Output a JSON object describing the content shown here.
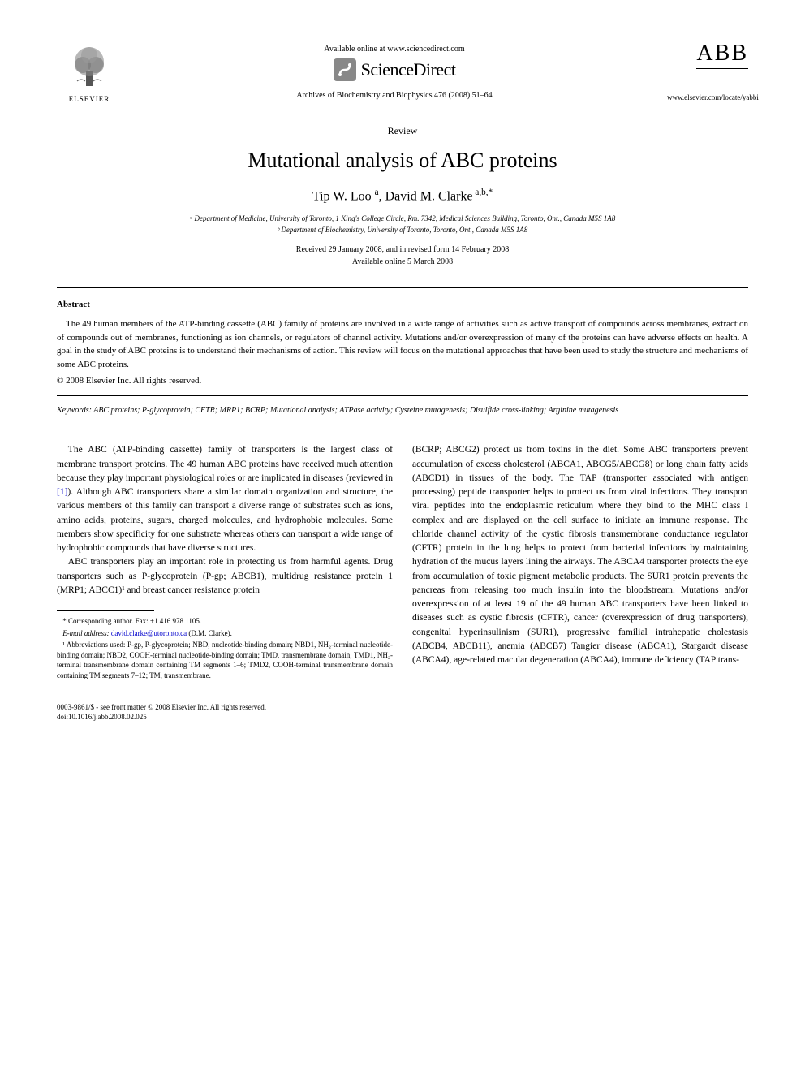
{
  "header": {
    "publisher": "ELSEVIER",
    "available_online": "Available online at www.sciencedirect.com",
    "sciencedirect": "ScienceDirect",
    "journal_ref": "Archives of Biochemistry and Biophysics 476 (2008) 51–64",
    "journal_logo": "ABB",
    "journal_url": "www.elsevier.com/locate/yabbi"
  },
  "article": {
    "type": "Review",
    "title": "Mutational analysis of ABC proteins",
    "authors_html": "Tip W. Loo <sup>a</sup>, David M. Clarke<sup> a,b,*</sup>",
    "affiliation_a": "ᵃ Department of Medicine, University of Toronto, 1 King's College Circle, Rm. 7342, Medical Sciences Building, Toronto, Ont., Canada M5S 1A8",
    "affiliation_b": "ᵇ Department of Biochemistry, University of Toronto, Toronto, Ont., Canada M5S 1A8",
    "received": "Received 29 January 2008, and in revised form 14 February 2008",
    "available": "Available online 5 March 2008"
  },
  "abstract": {
    "heading": "Abstract",
    "text": "The 49 human members of the ATP-binding cassette (ABC) family of proteins are involved in a wide range of activities such as active transport of compounds across membranes, extraction of compounds out of membranes, functioning as ion channels, or regulators of channel activity. Mutations and/or overexpression of many of the proteins can have adverse effects on health. A goal in the study of ABC proteins is to understand their mechanisms of action. This review will focus on the mutational approaches that have been used to study the structure and mechanisms of some ABC proteins.",
    "copyright": "© 2008 Elsevier Inc. All rights reserved."
  },
  "keywords": {
    "label": "Keywords:",
    "text": " ABC proteins; P-glycoprotein; CFTR; MRP1; BCRP; Mutational analysis; ATPase activity; Cysteine mutagenesis; Disulfide cross-linking; Arginine mutagenesis"
  },
  "body": {
    "col1_p1": "The ABC (ATP-binding cassette) family of transporters is the largest class of membrane transport proteins. The 49 human ABC proteins have received much attention because they play important physiological roles or are implicated in diseases (reviewed in [1]). Although ABC transporters share a similar domain organization and structure, the various members of this family can transport a diverse range of substrates such as ions, amino acids, proteins, sugars, charged molecules, and hydrophobic molecules. Some members show specificity for one substrate whereas others can transport a wide range of hydrophobic compounds that have diverse structures.",
    "col1_p2": "ABC transporters play an important role in protecting us from harmful agents. Drug transporters such as P-glycoprotein (P-gp; ABCB1), multidrug resistance protein 1 (MRP1; ABCC1)¹ and breast cancer resistance protein",
    "col2_p1": "(BCRP; ABCG2) protect us from toxins in the diet. Some ABC transporters prevent accumulation of excess cholesterol (ABCA1, ABCG5/ABCG8) or long chain fatty acids (ABCD1) in tissues of the body. The TAP (transporter associated with antigen processing) peptide transporter helps to protect us from viral infections. They transport viral peptides into the endoplasmic reticulum where they bind to the MHC class I complex and are displayed on the cell surface to initiate an immune response. The chloride channel activity of the cystic fibrosis transmembrane conductance regulator (CFTR) protein in the lung helps to protect from bacterial infections by maintaining hydration of the mucus layers lining the airways. The ABCA4 transporter protects the eye from accumulation of toxic pigment metabolic products. The SUR1 protein prevents the pancreas from releasing too much insulin into the bloodstream. Mutations and/or overexpression of at least 19 of the 49 human ABC transporters have been linked to diseases such as cystic fibrosis (CFTR), cancer (overexpression of drug transporters), congenital hyperinsulinism (SUR1), progressive familial intrahepatic cholestasis (ABCB4, ABCB11), anemia (ABCB7) Tangier disease (ABCA1), Stargardt disease (ABCA4), age-related macular degeneration (ABCA4), immune deficiency (TAP trans-"
  },
  "footnotes": {
    "corresponding": "* Corresponding author. Fax: +1 416 978 1105.",
    "email_label": "E-mail address:",
    "email": "david.clarke@utoronto.ca",
    "email_attrib": "(D.M. Clarke).",
    "abbrev": "¹ Abbreviations used: P-gp, P-glycoprotein; NBD, nucleotide-binding domain; NBD1, NH₂-terminal nucleotide-binding domain; NBD2, COOH-terminal nucleotide-binding domain; TMD, transmembrane domain; TMD1, NH₂-terminal transmembrane domain containing TM segments 1–6; TMD2, COOH-terminal transmembrane domain containing TM segments 7–12; TM, transmembrane."
  },
  "footer": {
    "issn": "0003-9861/$ - see front matter © 2008 Elsevier Inc. All rights reserved.",
    "doi": "doi:10.1016/j.abb.2008.02.025"
  },
  "colors": {
    "text": "#000000",
    "link": "#0000cc",
    "background": "#ffffff"
  }
}
